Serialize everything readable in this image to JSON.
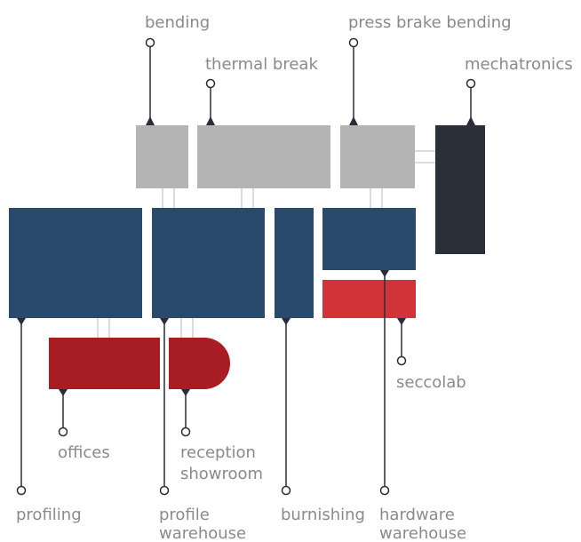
{
  "colors": {
    "gray": "#b4b4b4",
    "navy": "#2a4a6b",
    "dark": "#2b2f3a",
    "red": "#a81c24",
    "red_light": "#d03438",
    "label": "#8a8a8a",
    "line": "#2a2d38"
  },
  "labels": {
    "bending": "bending",
    "thermal_break": "thermal break",
    "press_brake_bending": "press brake bending",
    "mechatronics": "mechatronics",
    "seccolab": "seccolab",
    "offices": "offices",
    "reception": "reception",
    "showroom": "showroom",
    "profiling": "profiling",
    "profile_line1": "profile",
    "profile_line2": "warehouse",
    "burnishing": "burnishing",
    "hardware_line1": "hardware",
    "hardware_line2": "warehouse"
  }
}
